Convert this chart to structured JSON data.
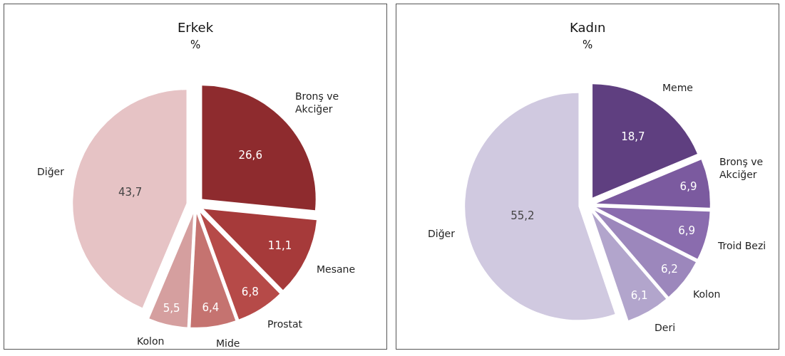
{
  "chart_data": [
    {
      "type": "pie",
      "title": "Erkek",
      "subtitle": "%",
      "categories": [
        "Bronş ve Akciğer",
        "Mesane",
        "Prostat",
        "Mide",
        "Kolon",
        "Diğer"
      ],
      "values": [
        26.6,
        11.1,
        6.8,
        6.4,
        5.5,
        43.7
      ],
      "value_labels": [
        "26,6",
        "11,1",
        "6,8",
        "6,4",
        "5,5",
        "43,7"
      ],
      "colors": [
        "#8e2b2e",
        "#a63a3a",
        "#b64a48",
        "#c57370",
        "#d59f9f",
        "#e6c3c5"
      ],
      "legend": false
    },
    {
      "type": "pie",
      "title": "Kadın",
      "subtitle": "%",
      "categories": [
        "Meme",
        "Bronş ve Akciğer",
        "Troid Bezi",
        "Kolon",
        "Deri",
        "Diğer"
      ],
      "values": [
        18.7,
        6.9,
        6.9,
        6.2,
        6.1,
        55.2
      ],
      "value_labels": [
        "18,7",
        "6,9",
        "6,9",
        "6,2",
        "6,1",
        "55,2"
      ],
      "colors": [
        "#5f3f80",
        "#7b5a9f",
        "#8a6cae",
        "#9c87bc",
        "#b2a5cc",
        "#d0c9e0"
      ],
      "legend": false
    }
  ]
}
